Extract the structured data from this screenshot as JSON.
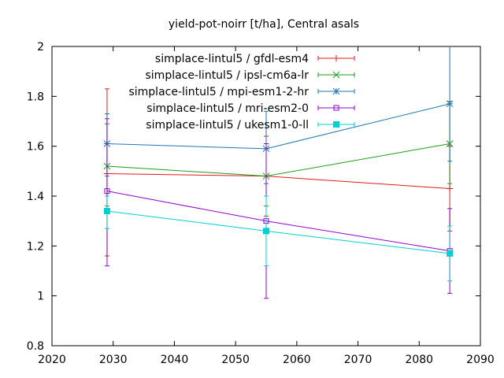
{
  "chart_data": {
    "type": "line",
    "title": "yield-pot-noirr [t/ha], Central asals",
    "xlabel": "",
    "ylabel": "",
    "xlim": [
      2020,
      2090
    ],
    "ylim": [
      0.8,
      2.0
    ],
    "xticks": [
      2020,
      2030,
      2040,
      2050,
      2060,
      2070,
      2080,
      2090
    ],
    "yticks": [
      0.8,
      1.0,
      1.2,
      1.4,
      1.6,
      1.8,
      2.0
    ],
    "xtick_labels": [
      "2020",
      "2030",
      "2040",
      "2050",
      "2060",
      "2070",
      "2080",
      "2090"
    ],
    "ytick_labels": [
      "0.8",
      "1",
      "1.2",
      "1.4",
      "1.6",
      "1.8",
      "2"
    ],
    "legend_position": "top-right",
    "grid": false,
    "x": [
      2029,
      2055,
      2085
    ],
    "series": [
      {
        "name": "simplace-lintul5 / gfdl-esm4",
        "color": "#e41a1c",
        "marker": "plus",
        "values": [
          1.49,
          1.48,
          1.43
        ],
        "err_low": [
          1.16,
          1.32,
          1.26
        ],
        "err_high": [
          1.83,
          1.64,
          1.6
        ]
      },
      {
        "name": "simplace-lintul5 / ipsl-cm6a-lr",
        "color": "#1a9e1a",
        "marker": "x",
        "values": [
          1.52,
          1.48,
          1.61
        ],
        "err_low": [
          1.36,
          1.36,
          1.45
        ],
        "err_high": [
          1.69,
          1.61,
          1.78
        ]
      },
      {
        "name": "simplace-lintul5 / mpi-esm1-2-hr",
        "color": "#1f77b4",
        "marker": "star",
        "values": [
          1.61,
          1.59,
          1.77
        ],
        "err_low": [
          1.48,
          1.45,
          1.54
        ],
        "err_high": [
          1.73,
          1.74,
          2.0
        ]
      },
      {
        "name": "simplace-lintul5 / mri-esm2-0",
        "color": "#9400d3",
        "marker": "open-square",
        "values": [
          1.42,
          1.3,
          1.18
        ],
        "err_low": [
          1.12,
          0.99,
          1.01
        ],
        "err_high": [
          1.71,
          1.61,
          1.35
        ]
      },
      {
        "name": "simplace-lintul5 / ukesm1-0-ll",
        "color": "#00d0d0",
        "marker": "filled-square",
        "values": [
          1.34,
          1.26,
          1.17
        ],
        "err_low": [
          1.27,
          1.12,
          1.06
        ],
        "err_high": [
          1.4,
          1.4,
          1.28
        ]
      }
    ]
  }
}
